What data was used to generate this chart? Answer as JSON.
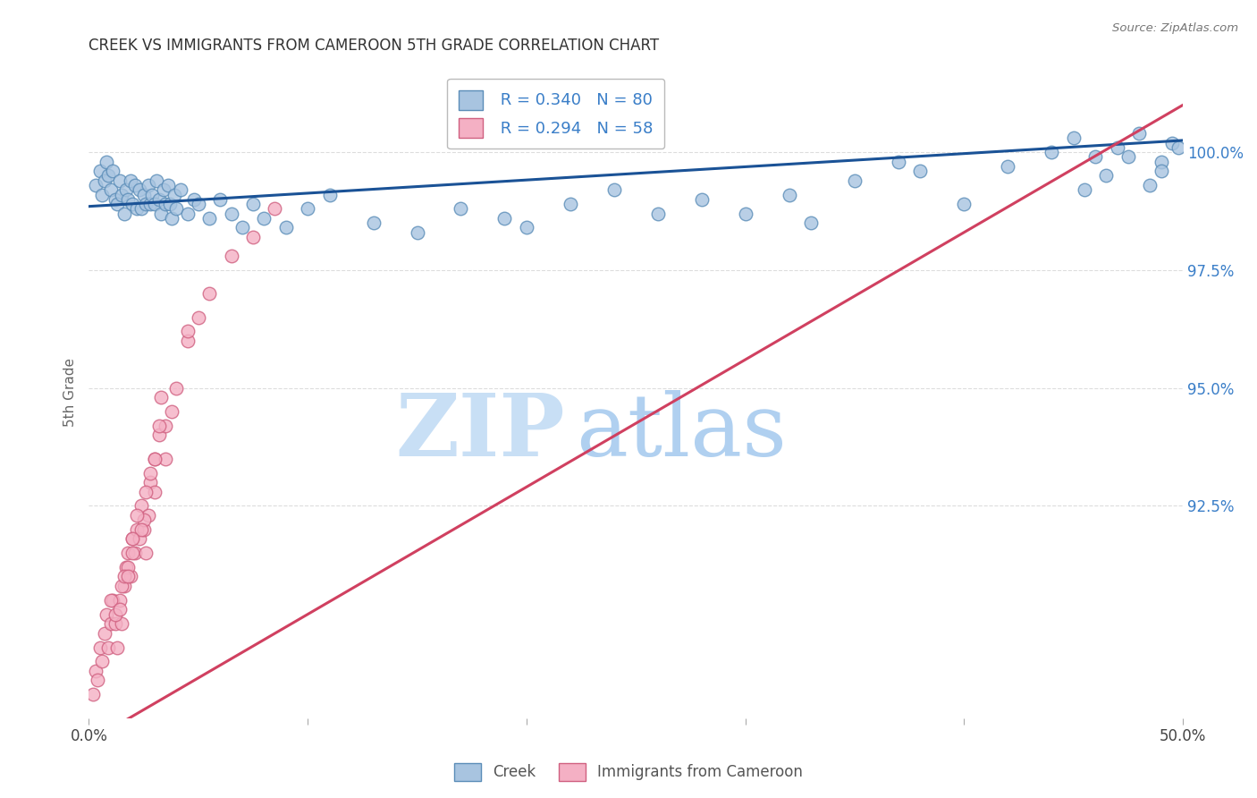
{
  "title": "CREEK VS IMMIGRANTS FROM CAMEROON 5TH GRADE CORRELATION CHART",
  "source": "Source: ZipAtlas.com",
  "ylabel": "5th Grade",
  "xlim": [
    0.0,
    50.0
  ],
  "ylim": [
    88.0,
    101.8
  ],
  "yticks": [
    92.5,
    95.0,
    97.5,
    100.0
  ],
  "ytick_labels": [
    "92.5%",
    "95.0%",
    "97.5%",
    "100.0%"
  ],
  "creek_color": "#a8c4e0",
  "creek_edge_color": "#5b8db8",
  "cameroon_color": "#f4b0c4",
  "cameroon_edge_color": "#d06080",
  "creek_R": 0.34,
  "creek_N": 80,
  "cameroon_R": 0.294,
  "cameroon_N": 58,
  "trendline_blue": "#1a5296",
  "trendline_pink": "#d04060",
  "watermark_zip_color": "#c8dff5",
  "watermark_atlas_color": "#b0d0f0",
  "legend_label_creek": "Creek",
  "legend_label_cameroon": "Immigrants from Cameroon",
  "creek_x": [
    0.3,
    0.5,
    0.6,
    0.7,
    0.8,
    0.9,
    1.0,
    1.1,
    1.2,
    1.3,
    1.4,
    1.5,
    1.6,
    1.7,
    1.8,
    1.9,
    2.0,
    2.1,
    2.2,
    2.3,
    2.4,
    2.5,
    2.6,
    2.7,
    2.8,
    2.9,
    3.0,
    3.1,
    3.2,
    3.3,
    3.4,
    3.5,
    3.6,
    3.7,
    3.8,
    3.9,
    4.0,
    4.2,
    4.5,
    4.8,
    5.0,
    5.5,
    6.0,
    6.5,
    7.0,
    7.5,
    8.0,
    9.0,
    10.0,
    11.0,
    13.0,
    15.0,
    17.0,
    19.0,
    20.0,
    22.0,
    24.0,
    26.0,
    28.0,
    30.0,
    32.0,
    33.0,
    35.0,
    37.0,
    38.0,
    40.0,
    42.0,
    44.0,
    45.0,
    46.0,
    47.0,
    48.0,
    49.0,
    49.5,
    49.8,
    49.0,
    48.5,
    47.5,
    46.5,
    45.5
  ],
  "creek_y": [
    99.3,
    99.6,
    99.1,
    99.4,
    99.8,
    99.5,
    99.2,
    99.6,
    99.0,
    98.9,
    99.4,
    99.1,
    98.7,
    99.2,
    99.0,
    99.4,
    98.9,
    99.3,
    98.8,
    99.2,
    98.8,
    99.1,
    98.9,
    99.3,
    98.9,
    99.1,
    98.9,
    99.4,
    99.0,
    98.7,
    99.2,
    98.9,
    99.3,
    98.9,
    98.6,
    99.1,
    98.8,
    99.2,
    98.7,
    99.0,
    98.9,
    98.6,
    99.0,
    98.7,
    98.4,
    98.9,
    98.6,
    98.4,
    98.8,
    99.1,
    98.5,
    98.3,
    98.8,
    98.6,
    98.4,
    98.9,
    99.2,
    98.7,
    99.0,
    98.7,
    99.1,
    98.5,
    99.4,
    99.8,
    99.6,
    98.9,
    99.7,
    100.0,
    100.3,
    99.9,
    100.1,
    100.4,
    99.8,
    100.2,
    100.1,
    99.6,
    99.3,
    99.9,
    99.5,
    99.2
  ],
  "cameroon_x": [
    0.2,
    0.3,
    0.4,
    0.5,
    0.6,
    0.7,
    0.8,
    0.9,
    1.0,
    1.1,
    1.2,
    1.3,
    1.4,
    1.5,
    1.6,
    1.7,
    1.8,
    1.9,
    2.0,
    2.1,
    2.2,
    2.3,
    2.4,
    2.5,
    2.6,
    2.7,
    2.8,
    3.0,
    3.2,
    3.5,
    3.8,
    4.5,
    5.5,
    6.5,
    7.5,
    8.5,
    1.0,
    1.2,
    1.5,
    1.8,
    2.0,
    2.5,
    3.0,
    3.5,
    4.0,
    5.0,
    2.8,
    3.3,
    2.2,
    1.6,
    2.4,
    3.0,
    2.0,
    1.4,
    1.8,
    2.6,
    3.2,
    4.5
  ],
  "cameroon_y": [
    88.5,
    89.0,
    88.8,
    89.5,
    89.2,
    89.8,
    90.2,
    89.5,
    90.0,
    90.5,
    90.0,
    89.5,
    90.5,
    90.0,
    90.8,
    91.2,
    91.5,
    91.0,
    91.8,
    91.5,
    92.0,
    91.8,
    92.5,
    92.0,
    91.5,
    92.3,
    93.0,
    93.5,
    94.0,
    93.5,
    94.5,
    96.0,
    97.0,
    97.8,
    98.2,
    98.8,
    90.5,
    90.2,
    90.8,
    91.2,
    91.5,
    92.2,
    92.8,
    94.2,
    95.0,
    96.5,
    93.2,
    94.8,
    92.3,
    91.0,
    92.0,
    93.5,
    91.8,
    90.3,
    91.0,
    92.8,
    94.2,
    96.2
  ],
  "background_color": "#ffffff",
  "grid_color": "#dddddd"
}
